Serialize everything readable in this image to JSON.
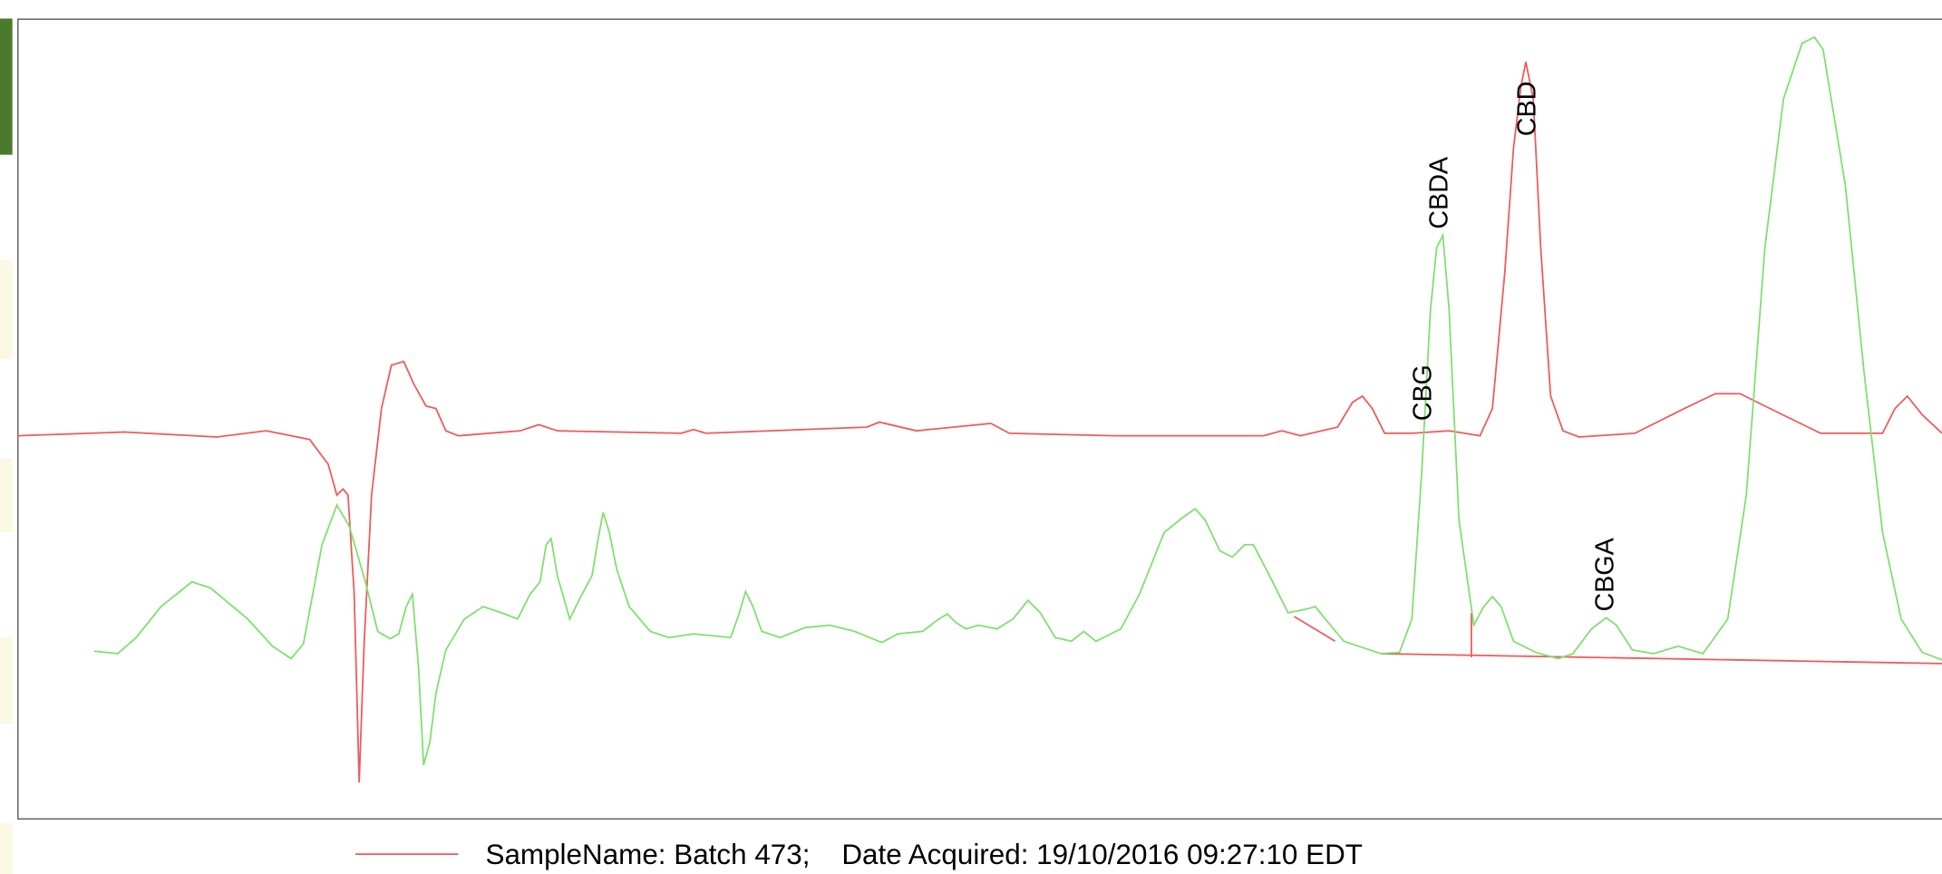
{
  "chart_data": {
    "type": "line",
    "xlim": [
      0,
      1554
    ],
    "ylim": [
      0,
      647
    ],
    "series": [
      {
        "name": "SampleName: Batch 473;    Date Acquired: 19/10/2016 09:27:10 EDT",
        "color": "#ef5a5a",
        "x": [
          0,
          86,
          161,
          201,
          236,
          251,
          258,
          263,
          267,
          272,
          276,
          280,
          286,
          294,
          302,
          312,
          320,
          330,
          338,
          346,
          356,
          406,
          421,
          436,
          536,
          546,
          556,
          686,
          696,
          726,
          776,
          786,
          801,
          886,
          1006,
          1021,
          1036,
          1066,
          1078,
          1086,
          1094,
          1104,
          1126,
          1156,
          1181,
          1191,
          1201,
          1208,
          1214,
          1218,
          1224,
          1230,
          1238,
          1248,
          1261,
          1306,
          1346,
          1371,
          1391,
          1411,
          1456,
          1506,
          1516,
          1526,
          1538,
          1554
        ],
        "values": [
          310,
          313,
          309,
          314,
          307,
          287,
          262,
          267,
          262,
          182,
          30,
          142,
          262,
          332,
          367,
          370,
          352,
          334,
          332,
          314,
          310,
          314,
          319,
          314,
          312,
          315,
          312,
          317,
          321,
          314,
          319,
          320,
          312,
          310,
          310,
          314,
          310,
          317,
          337,
          342,
          332,
          312,
          312,
          314,
          310,
          332,
          442,
          542,
          592,
          612,
          582,
          462,
          342,
          314,
          309,
          312,
          332,
          344,
          344,
          334,
          312,
          312,
          332,
          342,
          327,
          312
        ]
      },
      {
        "color": "#7ee06e",
        "x": [
          62,
          81,
          96,
          116,
          141,
          156,
          186,
          206,
          221,
          231,
          246,
          258,
          268,
          281,
          291,
          301,
          308,
          314,
          319,
          324,
          328,
          333,
          338,
          346,
          361,
          376,
          391,
          404,
          414,
          422,
          427,
          431,
          436,
          446,
          456,
          464,
          469,
          473,
          478,
          484,
          494,
          511,
          526,
          546,
          576,
          583,
          588,
          594,
          601,
          616,
          636,
          656,
          676,
          698,
          711,
          731,
          744,
          751,
          758,
          766,
          776,
          791,
          804,
          816,
          826,
          838,
          851,
          861,
          871,
          891,
          906,
          926,
          941,
          951,
          959,
          971,
          981,
          991,
          998,
          1011,
          1026,
          1041,
          1048,
          1056,
          1071,
          1101,
          1116,
          1126,
          1134,
          1141,
          1146,
          1151,
          1156,
          1164,
          1176,
          1184,
          1191,
          1198,
          1208,
          1226,
          1244,
          1256,
          1271,
          1283,
          1291,
          1304,
          1321,
          1341,
          1361,
          1381,
          1396,
          1411,
          1426,
          1441,
          1451,
          1458,
          1476,
          1491,
          1506,
          1521,
          1538,
          1554
        ],
        "values": [
          136,
          134,
          147,
          172,
          192,
          187,
          162,
          140,
          130,
          142,
          222,
          254,
          237,
          192,
          152,
          146,
          150,
          172,
          182,
          122,
          44,
          62,
          102,
          137,
          162,
          172,
          167,
          162,
          182,
          192,
          222,
          227,
          197,
          162,
          182,
          197,
          227,
          248,
          232,
          202,
          172,
          152,
          147,
          150,
          147,
          167,
          184,
          172,
          152,
          147,
          155,
          157,
          152,
          143,
          150,
          152,
          162,
          166,
          159,
          154,
          157,
          154,
          162,
          177,
          167,
          147,
          144,
          152,
          144,
          154,
          182,
          232,
          244,
          251,
          242,
          217,
          212,
          222,
          222,
          197,
          167,
          170,
          172,
          162,
          144,
          134,
          135,
          162,
          282,
          412,
          462,
          472,
          412,
          242,
          157,
          172,
          180,
          172,
          144,
          135,
          130,
          134,
          154,
          163,
          157,
          137,
          134,
          140,
          134,
          162,
          262,
          462,
          582,
          627,
          632,
          622,
          512,
          362,
          232,
          162,
          135,
          129
        ]
      }
    ],
    "baselines": [
      {
        "color": "#ef5a5a",
        "x": [
          1031,
          1064
        ],
        "values": [
          164,
          144
        ]
      },
      {
        "color": "#ef5a5a",
        "x": [
          1101,
          1554
        ],
        "values": [
          134,
          126
        ]
      },
      {
        "color": "#ef5a5a",
        "x": [
          1174,
          1174
        ],
        "values": [
          167,
          131
        ]
      }
    ],
    "annotations": [
      {
        "text": "CBG",
        "x": 1136,
        "y": 322
      },
      {
        "text": "CBDA",
        "x": 1149,
        "y": 477
      },
      {
        "text": "CBD",
        "x": 1220,
        "y": 552
      },
      {
        "text": "CBGA",
        "x": 1283,
        "y": 168
      }
    ]
  }
}
